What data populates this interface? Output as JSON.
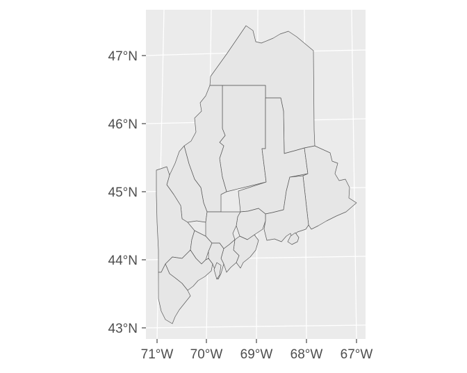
{
  "map": {
    "panel_background": "#ebebeb",
    "grid_color": "#ffffff",
    "county_fill": "#e6e6e6",
    "county_stroke": "#555555",
    "x_axis": {
      "ticks": [
        "71°W",
        "70°W",
        "69°W",
        "68°W",
        "67°W"
      ]
    },
    "y_axis": {
      "ticks": [
        "47°N",
        "46°N",
        "45°N",
        "44°N",
        "43°N"
      ]
    }
  }
}
